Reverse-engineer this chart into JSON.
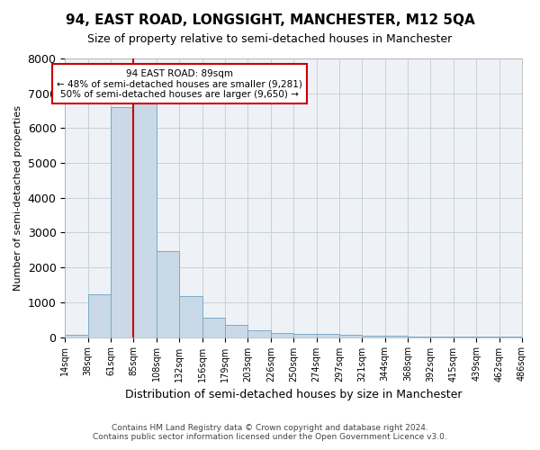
{
  "title": "94, EAST ROAD, LONGSIGHT, MANCHESTER, M12 5QA",
  "subtitle": "Size of property relative to semi-detached houses in Manchester",
  "xlabel": "Distribution of semi-detached houses by size in Manchester",
  "ylabel": "Number of semi-detached properties",
  "bar_values": [
    70,
    1230,
    6600,
    6700,
    2480,
    1190,
    560,
    340,
    200,
    130,
    100,
    90,
    60,
    40,
    30,
    20,
    10,
    5,
    5,
    5
  ],
  "bin_labels": [
    "14sqm",
    "38sqm",
    "61sqm",
    "85sqm",
    "108sqm",
    "132sqm",
    "156sqm",
    "179sqm",
    "203sqm",
    "226sqm",
    "250sqm",
    "274sqm",
    "297sqm",
    "321sqm",
    "344sqm",
    "368sqm",
    "392sqm",
    "415sqm",
    "439sqm",
    "462sqm",
    "486sqm"
  ],
  "bar_color": "#c9d9e8",
  "bar_edge_color": "#7aaac8",
  "grid_color": "#c8d0da",
  "background_color": "#eef2f7",
  "annotation_box_color": "#ffffff",
  "annotation_border_color": "#cc0000",
  "property_line_color": "#cc0000",
  "property_line_x": 2.5,
  "annotation_title": "94 EAST ROAD: 89sqm",
  "annotation_line1": "← 48% of semi-detached houses are smaller (9,281)",
  "annotation_line2": "50% of semi-detached houses are larger (9,650) →",
  "footer_line1": "Contains HM Land Registry data © Crown copyright and database right 2024.",
  "footer_line2": "Contains public sector information licensed under the Open Government Licence v3.0.",
  "ylim": [
    0,
    8000
  ],
  "yticks": [
    0,
    1000,
    2000,
    3000,
    4000,
    5000,
    6000,
    7000,
    8000
  ]
}
